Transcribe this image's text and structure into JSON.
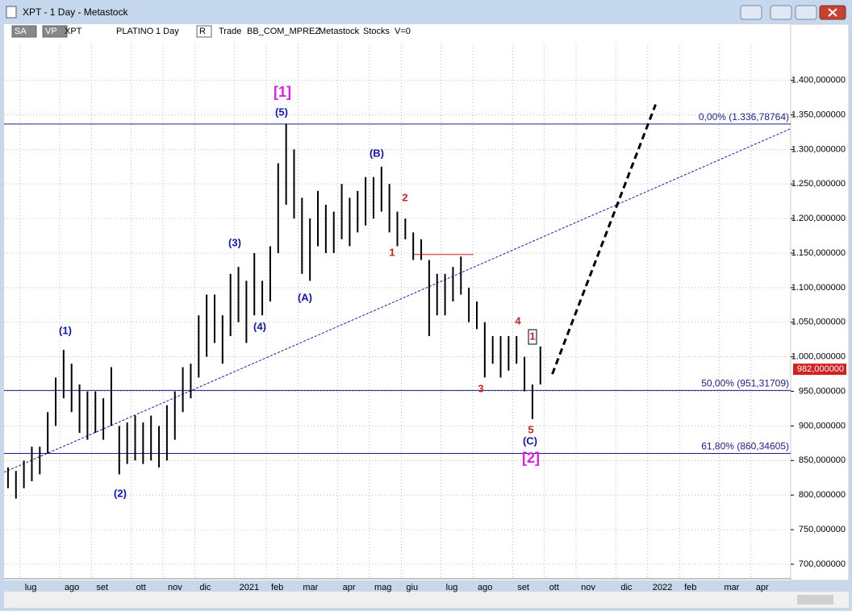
{
  "window": {
    "title": "XPT - 1 Day - Metastock",
    "toolbar": [
      "SA",
      "VP",
      "XPT",
      "PLATINO",
      "1 Day",
      "R",
      "Trade",
      "BB_COM_MPREZ",
      "Metastock",
      "Stocks",
      "V=0"
    ]
  },
  "chart_data": {
    "type": "hilo",
    "color": "#000000",
    "categories": [
      null,
      null,
      "lug",
      null,
      null,
      null,
      null,
      "ago",
      null,
      null,
      null,
      "set",
      null,
      null,
      null,
      null,
      "ott",
      null,
      null,
      null,
      "nov",
      null,
      null,
      null,
      "dic",
      null,
      null,
      null,
      null,
      "2021",
      null,
      null,
      null,
      "feb",
      null,
      null,
      null,
      "mar",
      null,
      null,
      null,
      null,
      "apr",
      null,
      null,
      null,
      "mag",
      null,
      null,
      null,
      "giu",
      null,
      null,
      null,
      null,
      "lug",
      null,
      null,
      null,
      "ago",
      null,
      null,
      null,
      null,
      "set",
      null,
      null,
      null,
      "ott",
      null,
      null,
      null,
      "nov",
      null,
      null,
      null,
      null,
      "dic",
      null,
      null,
      null,
      "2022",
      null,
      null,
      null,
      "feb",
      null,
      null,
      null,
      null,
      "mar",
      null,
      null,
      null,
      "apr",
      null,
      null,
      null,
      null
    ],
    "high": [
      840,
      835,
      850,
      870,
      870,
      920,
      970,
      1010,
      990,
      960,
      950,
      950,
      940,
      985,
      900,
      905,
      915,
      905,
      915,
      900,
      930,
      950,
      985,
      990,
      1060,
      1090,
      1090,
      1060,
      1120,
      1130,
      1110,
      1150,
      1110,
      1160,
      1280,
      1337,
      1300,
      1230,
      1200,
      1240,
      1220,
      1210,
      1250,
      1230,
      1240,
      1260,
      1260,
      1275,
      1250,
      1210,
      1200,
      1180,
      1170,
      1140,
      1120,
      1120,
      1130,
      1145,
      1100,
      1080,
      1050,
      1030,
      1030,
      1030,
      1030,
      1000,
      960,
      1015,
      null,
      null,
      null,
      null,
      null,
      null,
      null,
      null,
      null,
      null,
      null,
      null,
      null,
      null,
      null,
      null,
      null,
      null,
      null,
      null,
      null,
      null,
      null,
      null,
      null,
      null,
      null,
      null,
      null,
      null,
      null
    ],
    "low": [
      810,
      795,
      810,
      820,
      830,
      860,
      900,
      940,
      920,
      890,
      880,
      890,
      880,
      900,
      830,
      845,
      850,
      845,
      850,
      840,
      850,
      880,
      920,
      940,
      970,
      1000,
      1020,
      990,
      1030,
      1050,
      1020,
      1060,
      1060,
      1080,
      1150,
      1220,
      1200,
      1120,
      1110,
      1160,
      1150,
      1150,
      1170,
      1160,
      1180,
      1190,
      1200,
      1210,
      1180,
      1160,
      1170,
      1140,
      1140,
      1030,
      1060,
      1060,
      1080,
      1090,
      1050,
      1040,
      970,
      990,
      970,
      980,
      990,
      950,
      910,
      960,
      null,
      null,
      null,
      null,
      null,
      null,
      null,
      null,
      null,
      null,
      null,
      null,
      null,
      null,
      null,
      null,
      null,
      null,
      null,
      null,
      null,
      null,
      null,
      null,
      null,
      null,
      null,
      null,
      null,
      null,
      null
    ],
    "ylim": [
      679,
      1452
    ],
    "yticks": [
      {
        "value": 700,
        "label": "700,000000"
      },
      {
        "value": 750,
        "label": "750,000000"
      },
      {
        "value": 800,
        "label": "800,000000"
      },
      {
        "value": 850,
        "label": "850,000000"
      },
      {
        "value": 900,
        "label": "900,000000"
      },
      {
        "value": 950,
        "label": "950,000000"
      },
      {
        "value": 1000,
        "label": "1.000,000000"
      },
      {
        "value": 1050,
        "label": "1.050,000000"
      },
      {
        "value": 1100,
        "label": "1.100,000000"
      },
      {
        "value": 1150,
        "label": "1.150,000000"
      },
      {
        "value": 1200,
        "label": "1.200,000000"
      },
      {
        "value": 1250,
        "label": "1.250,000000"
      },
      {
        "value": 1300,
        "label": "1.300,000000"
      },
      {
        "value": 1350,
        "label": "1.350,000000"
      },
      {
        "value": 1400,
        "label": "1.400,000000"
      }
    ],
    "grid": true,
    "last_price": {
      "value": 982,
      "label": "982,000000",
      "color": "#d32020"
    },
    "fib_levels": [
      {
        "value": 1336.78764,
        "label": "0,00% (1.336,78764)"
      },
      {
        "value": 951.31709,
        "label": "50,00% (951,31709)"
      },
      {
        "value": 860.34605,
        "label": "61,80% (860,34605)"
      }
    ],
    "fib_color": "#1c1c8c",
    "red_level": 1148,
    "trendline": [
      833,
      1330
    ],
    "projection": [
      975,
      1365
    ],
    "annotations": [
      {
        "text": "[1]",
        "color": "#e020e0"
      },
      {
        "text": "(5)",
        "color": "#1414b4"
      },
      {
        "text": "(B)",
        "color": "#1414b4"
      },
      {
        "text": "2",
        "color": "#d02020"
      },
      {
        "text": "1",
        "color": "#d02020"
      },
      {
        "text": "(3)",
        "color": "#1414b4"
      },
      {
        "text": "(4)",
        "color": "#1414b4"
      },
      {
        "text": "(A)",
        "color": "#1414b4"
      },
      {
        "text": "(1)",
        "color": "#1414b4"
      },
      {
        "text": "(2)",
        "color": "#1414b4"
      },
      {
        "text": "4",
        "color": "#d02020"
      },
      {
        "text": "1",
        "color": "#d02020"
      },
      {
        "text": "3",
        "color": "#d02020"
      },
      {
        "text": "5",
        "color": "#d02020"
      },
      {
        "text": "(C)",
        "color": "#1414b4"
      },
      {
        "text": "[2]",
        "color": "#e020e0"
      }
    ]
  }
}
